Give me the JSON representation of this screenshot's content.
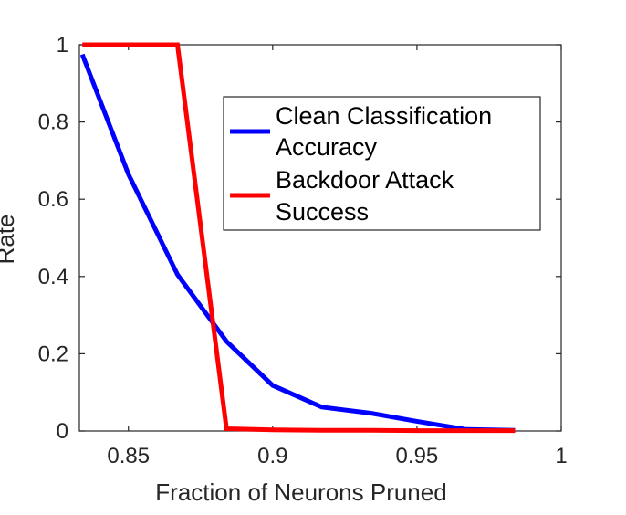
{
  "chart_data": {
    "type": "line",
    "title": "",
    "xlabel": "Fraction of Neurons Pruned",
    "ylabel": "Rate",
    "xlim": [
      0.833,
      1
    ],
    "ylim": [
      0,
      1
    ],
    "xticks": [
      0.85,
      0.9,
      0.95,
      1
    ],
    "xtick_labels": [
      "0.85",
      "0.9",
      "0.95",
      "1"
    ],
    "yticks": [
      0,
      0.2,
      0.4,
      0.6,
      0.8,
      1
    ],
    "ytick_labels": [
      "0",
      "0.2",
      "0.4",
      "0.6",
      "0.8",
      "1"
    ],
    "grid": false,
    "legend_position": "top-right",
    "series": [
      {
        "name": "Clean Classification Accuracy",
        "color": "#0000ff",
        "x": [
          0.834,
          0.85,
          0.867,
          0.884,
          0.9,
          0.917,
          0.934,
          0.95,
          0.967,
          0.984
        ],
        "y": [
          0.975,
          0.665,
          0.405,
          0.232,
          0.118,
          0.062,
          0.046,
          0.025,
          0.004,
          0.002
        ]
      },
      {
        "name": "Backdoor Attack Success",
        "color": "#ff0000",
        "x": [
          0.834,
          0.85,
          0.867,
          0.884,
          0.9,
          0.917,
          0.934,
          0.95,
          0.967,
          0.984
        ],
        "y": [
          1,
          1,
          1,
          0.006,
          0.003,
          0.002,
          0.002,
          0.001,
          0.001,
          0.001
        ]
      }
    ]
  },
  "legend": {
    "entries": [
      {
        "line1": "Clean Classification",
        "line2": "Accuracy",
        "color": "#0000ff"
      },
      {
        "line1": "Backdoor Attack",
        "line2": "Success",
        "color": "#ff0000"
      }
    ]
  }
}
